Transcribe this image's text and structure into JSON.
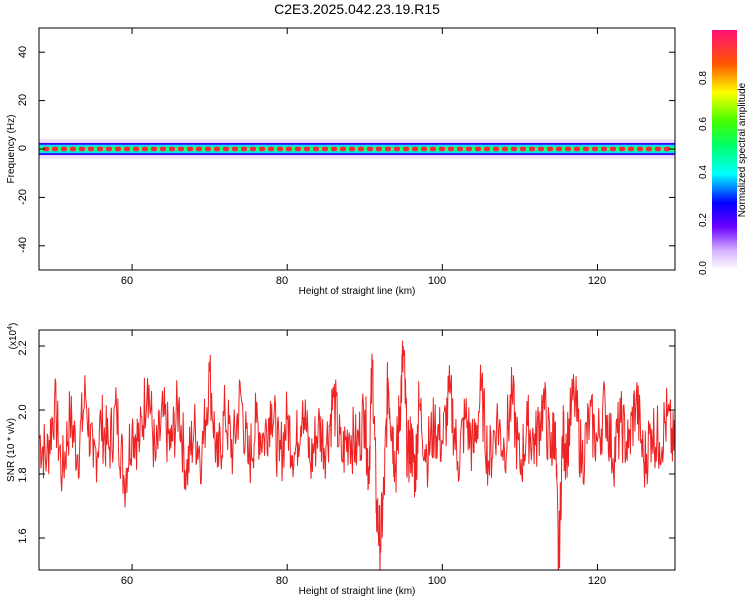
{
  "title": "C2E3.2025.042.23.19.R15",
  "colorbar": {
    "label": "Normalized spectral amplitude",
    "ticks": [
      "0.0",
      "0.2",
      "0.4",
      "0.6",
      "0.8"
    ],
    "tick_values": [
      0.0,
      0.2,
      0.4,
      0.6,
      0.8
    ],
    "range": [
      0,
      1
    ],
    "colormap": "rainbow (white to magenta)"
  },
  "chart_data": [
    {
      "type": "heatmap",
      "xlabel": "Height of straight line (km)",
      "ylabel": "Frequency (Hz)",
      "xlim": [
        48,
        130
      ],
      "ylim": [
        -50,
        50
      ],
      "xticks": [
        "60",
        "80",
        "100",
        "120"
      ],
      "xtick_values": [
        60,
        80,
        100,
        120
      ],
      "yticks": [
        "40",
        "20",
        "0",
        "-20",
        "-40"
      ],
      "ytick_values": [
        40,
        20,
        0,
        -20,
        -40
      ],
      "grid": false,
      "description_band_center_hz": 0,
      "band_halfwidth_hz": 2.5,
      "peak_amplitude": 1.0
    },
    {
      "type": "line",
      "xlabel": "Height of straight line (km)",
      "ylabel": "SNR (10 * v/v)",
      "yscale_label": "(x10",
      "yscale_exp": "4",
      "xlim": [
        48,
        130
      ],
      "ylim": [
        1.5,
        2.25
      ],
      "xticks": [
        "60",
        "80",
        "100",
        "120"
      ],
      "xtick_values": [
        60,
        80,
        100,
        120
      ],
      "yticks": [
        "2.2",
        "2.0",
        "1.8",
        "1.6"
      ],
      "ytick_values": [
        2.2,
        2.0,
        1.8,
        1.6
      ],
      "grid": false,
      "series": [
        {
          "color": "#ee2222",
          "x": [
            48,
            49,
            50,
            51,
            52,
            53,
            54,
            55,
            56,
            57,
            58,
            59,
            60,
            61,
            62,
            63,
            64,
            65,
            66,
            67,
            68,
            69,
            70,
            71,
            72,
            73,
            74,
            75,
            76,
            77,
            78,
            79,
            80,
            81,
            82,
            83,
            84,
            85,
            86,
            87,
            88,
            89,
            90,
            90.5,
            91,
            91.5,
            92,
            92.5,
            93,
            93.5,
            94,
            94.5,
            95,
            95.5,
            96,
            96.5,
            97,
            98,
            99,
            100,
            101,
            102,
            103,
            104,
            105,
            106,
            107,
            108,
            109,
            110,
            111,
            112,
            113,
            114,
            114.5,
            115,
            115.5,
            116,
            117,
            118,
            119,
            120,
            121,
            122,
            123,
            124,
            125,
            126,
            127,
            128,
            129,
            130
          ],
          "values": [
            1.92,
            1.85,
            2.02,
            1.8,
            1.98,
            1.86,
            2.05,
            1.82,
            1.96,
            1.88,
            2.0,
            1.78,
            1.95,
            1.9,
            2.1,
            1.84,
            1.98,
            1.88,
            2.02,
            1.8,
            1.94,
            1.86,
            2.12,
            1.82,
            1.99,
            1.87,
            2.05,
            1.83,
            1.96,
            1.91,
            2.02,
            1.84,
            1.97,
            1.86,
            2.03,
            1.83,
            1.95,
            1.89,
            2.04,
            1.85,
            1.93,
            1.88,
            2.0,
            1.8,
            2.15,
            1.7,
            1.58,
            1.75,
            2.1,
            1.95,
            1.82,
            2.0,
            2.18,
            1.85,
            1.9,
            1.8,
            2.02,
            1.86,
            1.95,
            1.9,
            2.05,
            1.84,
            1.98,
            1.87,
            2.06,
            1.83,
            1.97,
            1.88,
            2.04,
            1.82,
            1.95,
            1.89,
            2.03,
            1.86,
            1.96,
            1.51,
            1.92,
            1.88,
            2.05,
            1.84,
            1.97,
            1.9,
            2.02,
            1.85,
            1.96,
            1.88,
            2.04,
            1.83,
            1.94,
            1.9,
            1.98,
            1.86
          ]
        }
      ]
    }
  ]
}
